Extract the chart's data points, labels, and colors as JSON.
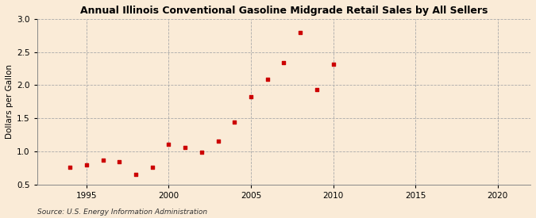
{
  "title": "Annual Illinois Conventional Gasoline Midgrade Retail Sales by All Sellers",
  "ylabel": "Dollars per Gallon",
  "source": "Source: U.S. Energy Information Administration",
  "background_color": "#faebd7",
  "marker_color": "#cc0000",
  "xlim": [
    1992,
    2022
  ],
  "ylim": [
    0.5,
    3.0
  ],
  "xticks": [
    1995,
    2000,
    2005,
    2010,
    2015,
    2020
  ],
  "yticks": [
    0.5,
    1.0,
    1.5,
    2.0,
    2.5,
    3.0
  ],
  "years": [
    1994,
    1995,
    1996,
    1997,
    1998,
    1999,
    2000,
    2001,
    2002,
    2003,
    2004,
    2005,
    2006,
    2007,
    2008,
    2009,
    2010
  ],
  "values": [
    0.76,
    0.79,
    0.87,
    0.84,
    0.65,
    0.76,
    1.11,
    1.06,
    0.99,
    1.15,
    1.44,
    1.83,
    2.09,
    2.34,
    2.8,
    1.93,
    2.31
  ]
}
